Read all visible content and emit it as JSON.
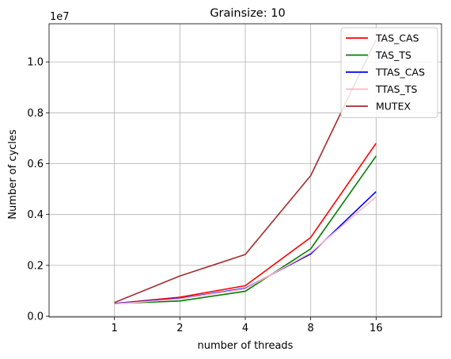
{
  "chart_data": {
    "type": "line",
    "title": "Grainsize: 10",
    "xlabel": "number of threads",
    "ylabel": "Number of cycles",
    "y_scale_label": "1e7",
    "x": [
      1,
      2,
      4,
      8,
      16
    ],
    "x_tick_labels": [
      "1",
      "2",
      "4",
      "8",
      "16"
    ],
    "xlim_index": [
      -1,
      5
    ],
    "ylim": [
      -0.03,
      11.5
    ],
    "y_ticks": [
      0.0,
      0.2,
      0.4,
      0.6,
      0.8,
      1.0
    ],
    "y_tick_labels": [
      "0.0",
      "0.2",
      "0.4",
      "0.6",
      "0.8",
      "1.0"
    ],
    "y_tick_values_scaled": [
      0,
      2,
      4,
      6,
      8,
      10
    ],
    "grid": true,
    "legend_position": "top-right",
    "series": [
      {
        "name": "TAS_CAS",
        "color": "#ff0000",
        "values": [
          0.05,
          0.075,
          0.12,
          0.31,
          0.68
        ]
      },
      {
        "name": "TAS_TS",
        "color": "#008000",
        "values": [
          0.05,
          0.06,
          0.098,
          0.265,
          0.63
        ]
      },
      {
        "name": "TTAS_CAS",
        "color": "#0000ff",
        "values": [
          0.05,
          0.07,
          0.11,
          0.245,
          0.49
        ]
      },
      {
        "name": "TTAS_TS",
        "color": "#ffb6c1",
        "values": [
          0.048,
          0.068,
          0.108,
          0.25,
          0.47
        ]
      },
      {
        "name": "MUTEX",
        "color": "#a52a2a",
        "values": [
          0.054,
          0.158,
          0.243,
          0.553,
          1.087
        ]
      }
    ]
  }
}
